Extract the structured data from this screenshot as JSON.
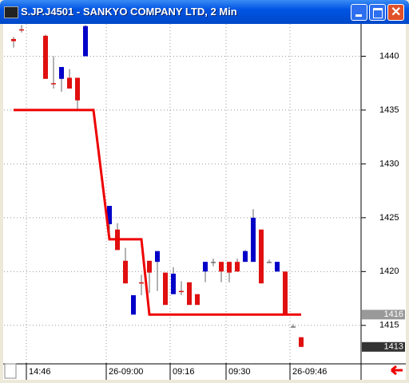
{
  "window": {
    "title": "S.JP.J4501 - SANKYO COMPANY LTD, 2 Min"
  },
  "chart_data": {
    "type": "candlestick",
    "categories": [
      null,
      null,
      "14:46",
      null,
      null,
      null,
      null,
      null,
      null,
      null,
      null,
      null,
      "26-09:00",
      null,
      null,
      null,
      null,
      null,
      null,
      null,
      "09:16",
      null,
      null,
      null,
      null,
      null,
      null,
      "09:30",
      null,
      null,
      null,
      null,
      null,
      null,
      null,
      "26-09:46",
      null
    ],
    "open": [
      1441.6,
      1442.5,
      null,
      null,
      1441.9,
      1437.5,
      1437.9,
      1438,
      1438,
      1440,
      null,
      null,
      1424.4,
      1423.9,
      1421,
      1416,
      1419,
      1421,
      1420.9,
      1419.9,
      1417.9,
      1418.2,
      1419,
      1417.9,
      1420,
      1420.9,
      1420.9,
      1420.9,
      1420.9,
      1420.9,
      1420.9,
      1423.9,
      1420.9,
      1420,
      1420,
      1414.9,
      1413.9
    ],
    "high": [
      1441.8,
      1442.9,
      null,
      null,
      1442,
      1440,
      1439,
      1438.8,
      1438,
      1442.9,
      null,
      null,
      1426.1,
      1424.5,
      1422.2,
      1417.8,
      1419.7,
      1421,
      1421.9,
      1419.9,
      1420.4,
      1419.1,
      1419,
      1417.9,
      1420.9,
      1421.2,
      1420.9,
      1420.9,
      1421.2,
      1422,
      1425.8,
      1423.9,
      1421.1,
      1420.9,
      1420,
      1415.1,
      1413.9
    ],
    "low": [
      1440.8,
      1442.2,
      null,
      null,
      1437.9,
      1437,
      1436.7,
      1437,
      1434.9,
      1440,
      null,
      null,
      1423,
      1422,
      1418.9,
      1416,
      1417.8,
      1418,
      1418.2,
      1416.9,
      1417.9,
      1417.8,
      1416.9,
      1416.9,
      1419,
      1420.5,
      1419,
      1419,
      1420,
      1420.9,
      1420.9,
      1418.9,
      1420.8,
      1420,
      1416,
      1414.8,
      1413
    ],
    "close": [
      1441.4,
      1442.4,
      null,
      null,
      1437.9,
      1437.4,
      1439,
      1437,
      1435.9,
      1442.8,
      null,
      null,
      1426.1,
      1422,
      1418.9,
      1417.8,
      1418.9,
      1419.9,
      1421.9,
      1416.9,
      1419.8,
      1418.1,
      1416.9,
      1416.9,
      1420.9,
      1420.9,
      1420,
      1419.9,
      1420,
      1421.9,
      1425,
      1418.9,
      1420.9,
      1420.9,
      1416,
      1414.9,
      1413
    ],
    "up_color": "#0000c8",
    "down_color": "#e01010",
    "doji_color": "#707070",
    "line": {
      "color": "#ee0000",
      "values": [
        1435,
        1435,
        1435,
        1435,
        1435,
        1435,
        1435,
        1435,
        1435,
        1435,
        1435,
        1429,
        1423,
        1423,
        1423,
        1423,
        1423,
        1416,
        1416,
        1416,
        1416,
        1416,
        1416,
        1416,
        1416,
        1416,
        1416,
        1416,
        1416,
        1416,
        1416,
        1416,
        1416,
        1416,
        1416,
        1416,
        1416
      ]
    },
    "ylim": [
      1411.5,
      1443
    ],
    "yticks": [
      1415,
      1420,
      1425,
      1430,
      1435,
      1440
    ],
    "price_markers": [
      1416,
      1413
    ],
    "grid": true
  }
}
